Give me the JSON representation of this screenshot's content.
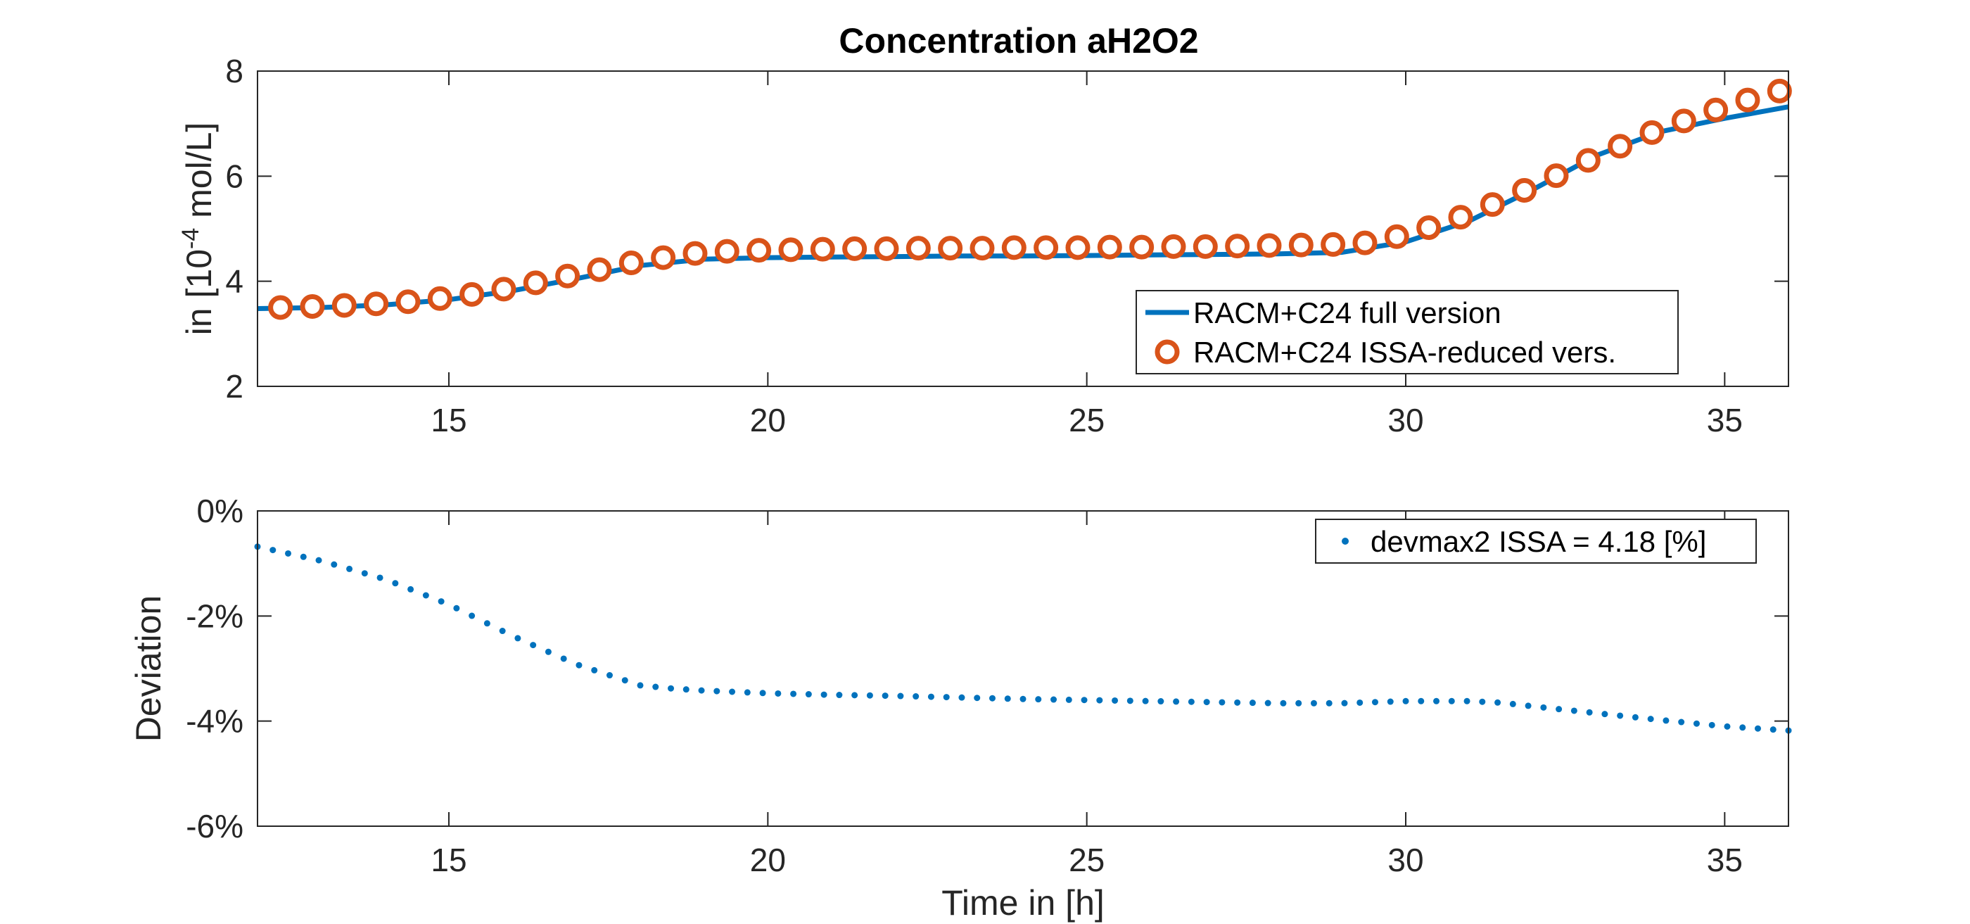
{
  "figure": {
    "title": "Concentration aH2O2"
  },
  "chart_data": [
    {
      "type": "line",
      "title": "Concentration aH2O2",
      "ylabel_main": "in [10",
      "ylabel_exp": "-4",
      "ylabel_tail": " mol/L]",
      "xlim": [
        12,
        36
      ],
      "ylim": [
        2,
        8
      ],
      "xticks": [
        15,
        20,
        25,
        30,
        35
      ],
      "yticks": [
        2,
        4,
        6,
        8
      ],
      "legend_position": "lower-right",
      "series": [
        {
          "name": "RACM+C24 full version",
          "style": "line",
          "color": "#0072BD",
          "x": [
            12,
            13,
            14,
            15,
            16,
            17,
            18,
            19,
            20,
            21,
            22,
            23,
            24,
            25,
            26,
            27,
            28,
            29,
            30,
            31,
            32,
            33,
            34,
            35,
            36
          ],
          "y": [
            3.48,
            3.5,
            3.55,
            3.65,
            3.82,
            4.05,
            4.3,
            4.42,
            4.45,
            4.46,
            4.47,
            4.48,
            4.48,
            4.49,
            4.5,
            4.51,
            4.52,
            4.55,
            4.75,
            5.15,
            5.75,
            6.4,
            6.85,
            7.1,
            7.32
          ]
        },
        {
          "name": "RACM+C24 ISSA-reduced vers.",
          "style": "circles",
          "color": "#D95319",
          "x": [
            12.36,
            12.86,
            13.36,
            13.86,
            14.36,
            14.86,
            15.36,
            15.86,
            16.36,
            16.86,
            17.36,
            17.86,
            18.36,
            18.86,
            19.36,
            19.86,
            20.36,
            20.86,
            21.36,
            21.86,
            22.36,
            22.86,
            23.36,
            23.86,
            24.36,
            24.86,
            25.36,
            25.86,
            26.36,
            26.86,
            27.36,
            27.86,
            28.36,
            28.86,
            29.36,
            29.86,
            30.36,
            30.86,
            31.36,
            31.86,
            32.36,
            32.86,
            33.36,
            33.86,
            34.36,
            34.86,
            35.36,
            35.86
          ],
          "y": [
            3.5,
            3.52,
            3.54,
            3.57,
            3.61,
            3.67,
            3.75,
            3.85,
            3.97,
            4.1,
            4.22,
            4.35,
            4.45,
            4.53,
            4.57,
            4.59,
            4.6,
            4.61,
            4.62,
            4.62,
            4.63,
            4.63,
            4.63,
            4.64,
            4.64,
            4.64,
            4.65,
            4.65,
            4.66,
            4.66,
            4.67,
            4.68,
            4.69,
            4.7,
            4.73,
            4.85,
            5.02,
            5.22,
            5.46,
            5.73,
            6.01,
            6.3,
            6.57,
            6.83,
            7.05,
            7.26,
            7.45,
            7.62
          ]
        }
      ]
    },
    {
      "type": "scatter",
      "ylabel": "Deviation",
      "xlabel": "Time in [h]",
      "xlim": [
        12,
        36
      ],
      "ylim": [
        -6,
        0
      ],
      "xticks": [
        15,
        20,
        25,
        30,
        35
      ],
      "yticks": [
        0,
        -2,
        -4,
        -6
      ],
      "ytick_labels": [
        "0%",
        "-2%",
        "-4%",
        "-6%"
      ],
      "legend_position": "top-right",
      "series": [
        {
          "name": "devmax2 ISSA = 4.18 [%]",
          "style": "dots",
          "color": "#0072BD",
          "x": [
            12,
            13,
            14,
            15,
            16,
            17,
            18,
            18.5,
            19,
            20,
            21,
            22,
            23,
            24,
            25,
            26,
            27,
            28,
            29,
            30,
            31,
            31.5,
            32,
            33,
            34,
            35,
            36
          ],
          "y": [
            -0.68,
            -0.95,
            -1.3,
            -1.78,
            -2.38,
            -2.92,
            -3.32,
            -3.38,
            -3.42,
            -3.47,
            -3.5,
            -3.52,
            -3.55,
            -3.58,
            -3.6,
            -3.62,
            -3.64,
            -3.66,
            -3.66,
            -3.62,
            -3.62,
            -3.65,
            -3.72,
            -3.85,
            -3.98,
            -4.1,
            -4.18
          ]
        }
      ]
    }
  ]
}
